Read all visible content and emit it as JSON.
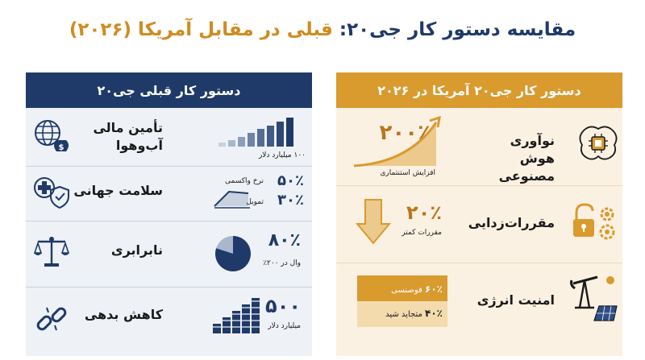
{
  "title": {
    "part1": "مقایسه دستور کار جی۲۰:",
    "part2": "قبلی در مقابل آمریکا (۲۰۲۶)"
  },
  "left_panel": {
    "header": "دستور کار قبلی جی۲۰",
    "rows": [
      {
        "label_line1": "تأمین مالی",
        "label_line2": "آب‌وهوا",
        "stat": "۱۰۰ میلیارد دلار"
      },
      {
        "label": "سلامت جهانی",
        "stat1": "۵۰٪",
        "stat1_label": "نرخ واکسمی",
        "stat2": "۳۰٪",
        "stat2_label": "تمویل"
      },
      {
        "label": "نابرابری",
        "stat": "۸۰٪",
        "stat_label": "وال در ۲۰۰٪",
        "pie_fraction": 0.8
      },
      {
        "label": "کاهش بدهی",
        "stat": "۵۰۰",
        "stat_label": "میلیارد دلار"
      }
    ]
  },
  "right_panel": {
    "header": "دستور کار جی۲۰ آمریکا در ۲۰۲۶",
    "rows": [
      {
        "label_line1": "نوآوری",
        "label_line2": "هوش مصنوعی",
        "stat": "۲۰۰٪",
        "stat_label": "افزایش استنتماری"
      },
      {
        "label": "مقررات‌زدایی",
        "stat": "۲۰٪",
        "stat_label": "مقررات کمتر"
      },
      {
        "label": "امنیت انرژی",
        "stat1": "۶۰٪",
        "stat1_label": "فوصنسی",
        "stat2": "۴۰٪",
        "stat2_label": "متجاید شید"
      }
    ]
  },
  "colors": {
    "navy": "#1f3a68",
    "gold": "#d99a2e",
    "light_blue": "#eef1f6",
    "light_gold": "#fbf1e3"
  }
}
